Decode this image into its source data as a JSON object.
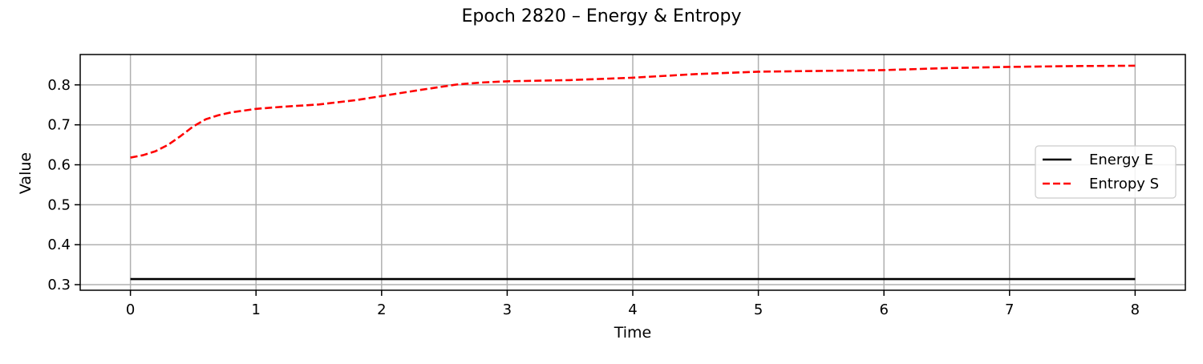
{
  "chart_data": {
    "type": "line",
    "title": "Epoch 2820 – Energy & Entropy",
    "xlabel": "Time",
    "ylabel": "Value",
    "xlim": [
      -0.4,
      8.4
    ],
    "ylim": [
      0.286,
      0.876
    ],
    "xticks": [
      0,
      1,
      2,
      3,
      4,
      5,
      6,
      7,
      8
    ],
    "yticks": [
      0.3,
      0.4,
      0.5,
      0.6,
      0.7,
      0.8
    ],
    "grid": true,
    "legend_position": "center-right",
    "series": [
      {
        "name": "Energy E",
        "color": "#000000",
        "style": "solid",
        "x": [
          0,
          8
        ],
        "y": [
          0.314,
          0.314
        ]
      },
      {
        "name": "Entropy S",
        "color": "#ff0000",
        "style": "dashed",
        "x": [
          0,
          0.1,
          0.2,
          0.3,
          0.4,
          0.5,
          0.6,
          0.7,
          0.8,
          1.0,
          1.2,
          1.5,
          1.8,
          2.0,
          2.3,
          2.6,
          2.8,
          3.0,
          3.5,
          4.0,
          4.5,
          5.0,
          5.5,
          6.0,
          6.5,
          7.0,
          7.5,
          8.0
        ],
        "y": [
          0.618,
          0.624,
          0.634,
          0.65,
          0.672,
          0.696,
          0.714,
          0.724,
          0.731,
          0.74,
          0.745,
          0.751,
          0.762,
          0.772,
          0.787,
          0.801,
          0.806,
          0.809,
          0.812,
          0.818,
          0.827,
          0.833,
          0.835,
          0.837,
          0.842,
          0.845,
          0.847,
          0.848
        ]
      }
    ]
  }
}
